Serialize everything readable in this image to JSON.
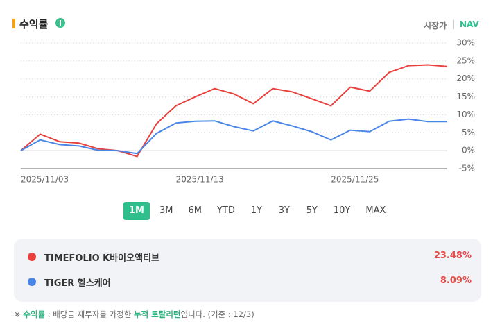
{
  "header": {
    "title": "수익률",
    "tabs": [
      "시장가",
      "NAV"
    ]
  },
  "chart_data": {
    "type": "line",
    "categories": [
      "2025/11/03",
      null,
      null,
      null,
      null,
      null,
      null,
      null,
      "2025/11/13",
      null,
      null,
      null,
      null,
      null,
      null,
      null,
      "2025/11/25",
      null,
      null,
      null,
      null,
      null,
      null
    ],
    "series": [
      {
        "name": "TIMEFOLIO K바이오액티브",
        "color": "#e8413e",
        "values": [
          0,
          4.6,
          2.5,
          2.1,
          0.5,
          0,
          -1.6,
          7.5,
          12.5,
          15,
          17.3,
          15.8,
          13.1,
          17.3,
          16.4,
          14.5,
          12.5,
          17.7,
          16.6,
          21.8,
          23.7,
          23.9,
          23.48
        ]
      },
      {
        "name": "TIGER 헬스케어",
        "color": "#4a86e8",
        "values": [
          0,
          3.0,
          1.7,
          1.3,
          0.1,
          0,
          -0.8,
          4.8,
          7.7,
          8.2,
          8.3,
          6.7,
          5.5,
          8.3,
          6.9,
          5.3,
          3.0,
          5.7,
          5.3,
          8.2,
          8.8,
          8.1,
          8.09
        ]
      }
    ],
    "ylim": [
      -5,
      30
    ],
    "yticks": [
      {
        "value": -5,
        "label": "-5%"
      },
      {
        "value": 0,
        "label": "0%"
      },
      {
        "value": 5,
        "label": "5%"
      },
      {
        "value": 10,
        "label": "10%"
      },
      {
        "value": 15,
        "label": "15%"
      },
      {
        "value": 20,
        "label": "20%"
      },
      {
        "value": 25,
        "label": "25%"
      },
      {
        "value": 30,
        "label": "30%"
      }
    ],
    "grid": true
  },
  "periods": [
    "1M",
    "3M",
    "6M",
    "YTD",
    "1Y",
    "3Y",
    "5Y",
    "10Y",
    "MAX"
  ],
  "summary": {
    "returns": [
      "23.48%",
      "8.09%"
    ]
  },
  "footnote": [
    "※ ",
    "수익률",
    " : 배당금 재투자를 가정한 ",
    "누적 토탈리턴",
    "입니다. (기준 : 12/3)"
  ]
}
